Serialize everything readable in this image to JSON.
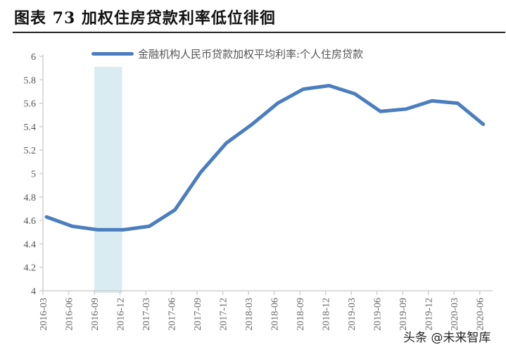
{
  "header": {
    "title": "图表 73  加权住房贷款利率低位徘徊"
  },
  "legend": {
    "label": "金融机构人民币贷款加权平均利率:个人住房贷款",
    "color": "#4a7ebf"
  },
  "watermark": "头条 @未来智库",
  "highlight": {
    "from": "2016-09",
    "to": "2016-12",
    "color": "#d9ecf2"
  },
  "chart_data": {
    "type": "line",
    "title": "加权住房贷款利率低位徘徊",
    "xlabel": "",
    "ylabel": "",
    "ylim": [
      4,
      6
    ],
    "yticks": [
      4,
      4.2,
      4.4,
      4.6,
      4.8,
      5,
      5.2,
      5.4,
      5.6,
      5.8,
      6
    ],
    "ytick_labels": [
      "4",
      "4.2",
      "4.4",
      "4.6",
      "4.8",
      "5",
      "5.2",
      "5.4",
      "5.6",
      "5.8",
      "6"
    ],
    "grid": false,
    "legend_position": "top",
    "categories": [
      "2016-03",
      "2016-06",
      "2016-09",
      "2016-12",
      "2017-03",
      "2017-06",
      "2017-09",
      "2017-12",
      "2018-03",
      "2018-06",
      "2018-09",
      "2018-12",
      "2019-03",
      "2019-06",
      "2019-09",
      "2019-12",
      "2020-03",
      "2020-06"
    ],
    "series": [
      {
        "name": "金融机构人民币贷款加权平均利率:个人住房贷款",
        "color": "#4a7ebf",
        "values": [
          4.63,
          4.55,
          4.52,
          4.52,
          4.55,
          4.69,
          5.01,
          5.26,
          5.42,
          5.6,
          5.72,
          5.75,
          5.68,
          5.53,
          5.55,
          5.62,
          5.6,
          5.42
        ]
      }
    ],
    "annotations": [
      {
        "type": "shaded_band",
        "from": "2016-09",
        "to": "2016-12"
      }
    ]
  }
}
